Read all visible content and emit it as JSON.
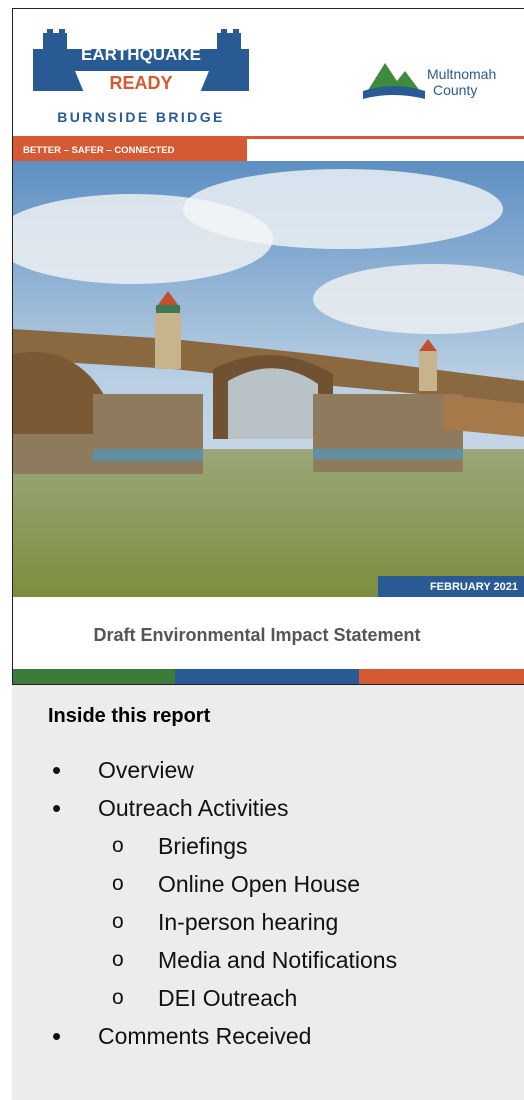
{
  "cover": {
    "logo": {
      "line1": "EARTHQUAKE",
      "line2": "READY",
      "line3": "BURNSIDE BRIDGE",
      "tagline": "BETTER – SAFER – CONNECTED"
    },
    "agency": {
      "name1": "Multnomah",
      "name2": "County"
    },
    "date": "FEBRUARY 2021",
    "title": "Draft Environmental Impact Statement"
  },
  "contents": {
    "heading": "Inside this report",
    "items": [
      {
        "label": "Overview",
        "children": []
      },
      {
        "label": "Outreach Activities",
        "children": [
          "Briefings",
          "Online Open House",
          "In-person hearing",
          "Media and Notifications",
          "DEI Outreach"
        ]
      },
      {
        "label": "Comments Received",
        "children": []
      }
    ]
  }
}
